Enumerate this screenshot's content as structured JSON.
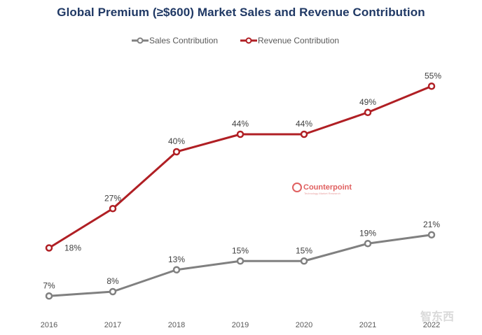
{
  "chart_data": {
    "type": "line",
    "title": "Global Premium (≥$600) Market Sales and Revenue Contribution",
    "xlabel": "",
    "ylabel": "",
    "categories": [
      "2016",
      "2017",
      "2018",
      "2019",
      "2020",
      "2021",
      "2022"
    ],
    "ylim": [
      0,
      60
    ],
    "grid": false,
    "legend_position": "top-center",
    "series": [
      {
        "name": "Sales Contribution",
        "color": "#808080",
        "values": [
          7,
          8,
          13,
          15,
          15,
          19,
          21
        ],
        "labels": [
          "7%",
          "8%",
          "13%",
          "15%",
          "15%",
          "19%",
          "21%"
        ]
      },
      {
        "name": "Revenue Contribution",
        "color": "#b01f24",
        "values": [
          18,
          27,
          40,
          44,
          44,
          49,
          55
        ],
        "labels": [
          "18%",
          "27%",
          "40%",
          "44%",
          "44%",
          "49%",
          "55%"
        ]
      }
    ]
  },
  "watermark": {
    "brand": "Counterpoint",
    "tagline": "Technology Market Research",
    "brand_color": "#e06060"
  },
  "corner_logo": {
    "text": "智东西"
  }
}
